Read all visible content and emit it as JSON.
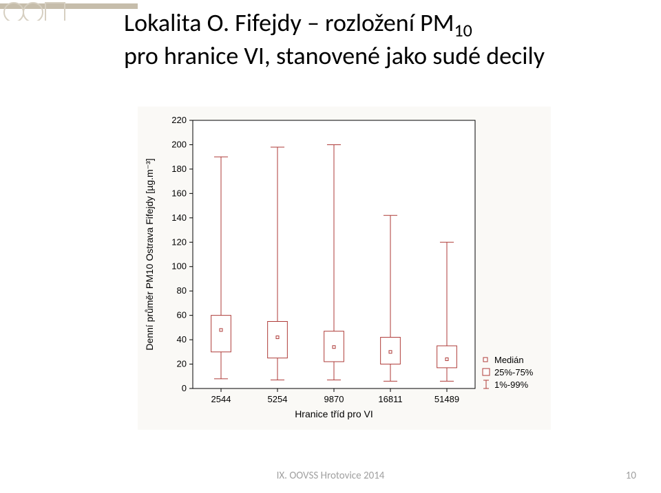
{
  "title_line1": "Lokalita O. Fifejdy – rozložení PM",
  "title_sub": "10",
  "title_line2": "pro hranice VI, stanovené jako sudé decily",
  "footer": "IX. OOVSS Hrotovice 2014",
  "page_number": "10",
  "chart": {
    "type": "boxplot",
    "background_color": "#faf9f6",
    "plot_bg": "#ffffff",
    "axis_color": "#000000",
    "tick_fontsize": 13,
    "label_fontsize": 14,
    "ylabel": "Denní průměr PM10 Ostrava Fifejdy [µg.m⁻³]",
    "xlabel": "Hranice tříd pro VI",
    "ylim": [
      0,
      220
    ],
    "ytick_step": 20,
    "categories": [
      "2544",
      "5254",
      "9870",
      "16811",
      "51489"
    ],
    "box_width": 0.35,
    "box_stroke": "#ae3a37",
    "box_fill": "#ffffff",
    "whisker_color": "#ae3a37",
    "median_marker_color": "#ae3a37",
    "median_marker_size": 4,
    "series": [
      {
        "median": 48,
        "q1": 30,
        "q3": 60,
        "low": 8,
        "high": 190
      },
      {
        "median": 42,
        "q1": 25,
        "q3": 55,
        "low": 7,
        "high": 198
      },
      {
        "median": 34,
        "q1": 22,
        "q3": 47,
        "low": 7,
        "high": 200
      },
      {
        "median": 30,
        "q1": 20,
        "q3": 42,
        "low": 6,
        "high": 142
      },
      {
        "median": 24,
        "q1": 17,
        "q3": 35,
        "low": 6,
        "high": 120
      }
    ],
    "legend": {
      "items": [
        {
          "label": "Medián",
          "type": "marker"
        },
        {
          "label": "25%-75%",
          "type": "box"
        },
        {
          "label": "1%-99%",
          "type": "whisker"
        }
      ],
      "fontsize": 13,
      "color": "#ae3a37"
    }
  },
  "header_decoration": {
    "bar_color": "#c6bdab",
    "circle_stroke": "#d6cfc1"
  }
}
